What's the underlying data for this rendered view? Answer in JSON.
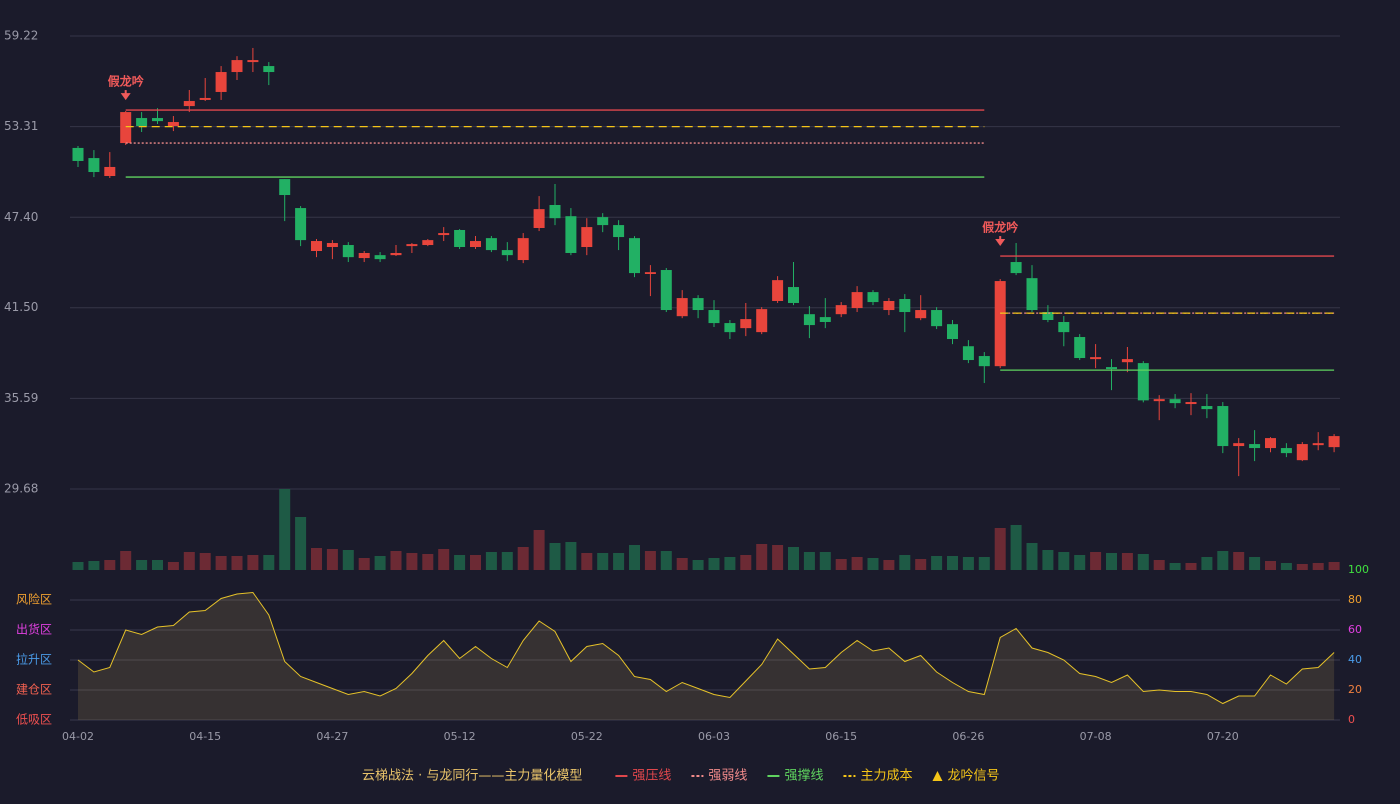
{
  "chart_data": {
    "type": "candlestick",
    "title": "云梯战法 · 与龙同行——主力量化模型",
    "categories": [
      "04-02",
      null,
      null,
      null,
      null,
      null,
      null,
      null,
      "04-15",
      null,
      null,
      null,
      null,
      null,
      null,
      null,
      "04-27",
      null,
      null,
      null,
      null,
      null,
      null,
      null,
      "05-12",
      null,
      null,
      null,
      null,
      null,
      null,
      null,
      "05-22",
      null,
      null,
      null,
      null,
      null,
      null,
      null,
      "06-03",
      null,
      null,
      null,
      null,
      null,
      null,
      null,
      "06-15",
      null,
      null,
      null,
      null,
      null,
      null,
      null,
      "06-26",
      null,
      null,
      null,
      null,
      null,
      null,
      null,
      "07-08",
      null,
      null,
      null,
      null,
      null,
      null,
      null,
      "07-20",
      null,
      null,
      null,
      null,
      null,
      null,
      null
    ],
    "open": [
      51.92,
      51.26,
      50.09,
      52.24,
      53.87,
      53.87,
      53.35,
      54.65,
      55.05,
      55.57,
      56.87,
      57.52,
      57.26,
      49.89,
      48.0,
      45.2,
      45.46,
      45.59,
      44.74,
      44.93,
      44.93,
      45.52,
      45.59,
      46.24,
      46.57,
      45.46,
      46.04,
      45.26,
      44.61,
      46.7,
      48.2,
      47.47,
      45.46,
      47.41,
      46.89,
      46.04,
      43.7,
      43.96,
      40.95,
      42.13,
      41.35,
      40.5,
      40.17,
      39.91,
      41.94,
      42.85,
      41.08,
      40.89,
      41.08,
      41.48,
      42.52,
      41.35,
      42.07,
      40.82,
      41.35,
      40.43,
      38.99,
      38.35,
      37.69,
      44.48,
      43.43,
      41.22,
      40.57,
      39.59,
      38.15,
      37.63,
      37.95,
      37.89,
      35.41,
      35.54,
      35.22,
      35.09,
      35.09,
      32.48,
      32.61,
      32.35,
      32.35,
      31.56,
      32.54,
      32.41
    ],
    "high": [
      52.05,
      51.78,
      51.65,
      54.33,
      54.26,
      54.52,
      54.0,
      55.7,
      56.48,
      57.26,
      57.91,
      58.44,
      57.52,
      49.89,
      48.13,
      45.98,
      45.91,
      45.78,
      45.2,
      45.13,
      45.59,
      45.72,
      45.98,
      46.76,
      46.63,
      46.18,
      46.18,
      45.78,
      46.37,
      48.78,
      49.57,
      48.0,
      47.34,
      47.67,
      47.21,
      46.17,
      44.28,
      44.09,
      42.65,
      42.32,
      42.0,
      40.7,
      41.81,
      41.54,
      43.56,
      44.48,
      41.61,
      42.13,
      41.87,
      42.91,
      42.65,
      42.13,
      42.39,
      42.32,
      41.54,
      40.7,
      39.39,
      38.61,
      43.37,
      45.72,
      44.28,
      41.67,
      40.96,
      39.78,
      39.13,
      38.15,
      38.94,
      38.02,
      35.8,
      35.87,
      35.93,
      35.87,
      35.35,
      33.0,
      33.52,
      33.06,
      32.67,
      32.74,
      33.39,
      33.26
    ],
    "low": [
      50.68,
      50.02,
      49.96,
      52.11,
      52.96,
      53.48,
      53.02,
      54.26,
      54.98,
      55.05,
      56.35,
      56.87,
      56.02,
      47.15,
      45.52,
      44.8,
      44.67,
      44.48,
      44.48,
      44.48,
      44.87,
      45.07,
      45.52,
      45.85,
      45.33,
      45.33,
      45.13,
      44.54,
      44.41,
      46.5,
      46.89,
      44.93,
      44.93,
      46.43,
      45.26,
      43.5,
      42.26,
      41.22,
      40.82,
      40.82,
      40.24,
      39.46,
      39.65,
      39.78,
      41.81,
      41.67,
      39.52,
      40.17,
      40.89,
      41.22,
      41.67,
      41.02,
      39.91,
      40.69,
      40.11,
      39.13,
      37.89,
      36.59,
      37.56,
      43.63,
      41.22,
      40.56,
      38.99,
      38.09,
      37.56,
      36.13,
      37.3,
      35.33,
      34.17,
      34.95,
      34.5,
      34.3,
      32.02,
      30.52,
      31.5,
      32.08,
      31.76,
      31.5,
      32.21,
      32.08
    ],
    "close": [
      51.07,
      50.35,
      50.68,
      54.26,
      53.35,
      53.67,
      53.61,
      54.98,
      55.18,
      56.87,
      57.65,
      57.65,
      56.87,
      48.85,
      45.91,
      45.85,
      45.72,
      44.8,
      45.07,
      44.67,
      45.07,
      45.65,
      45.91,
      46.37,
      45.46,
      45.85,
      45.26,
      44.93,
      46.04,
      47.93,
      47.34,
      45.07,
      46.76,
      46.89,
      46.11,
      43.76,
      43.82,
      41.35,
      42.13,
      41.35,
      40.5,
      39.91,
      40.76,
      41.41,
      43.3,
      41.81,
      40.37,
      40.57,
      41.67,
      42.52,
      41.87,
      41.94,
      41.22,
      41.35,
      40.3,
      39.46,
      38.09,
      37.69,
      43.24,
      43.76,
      41.35,
      40.7,
      39.91,
      38.22,
      38.28,
      37.5,
      38.15,
      35.46,
      35.54,
      35.28,
      35.35,
      34.89,
      32.48,
      32.67,
      32.35,
      33.0,
      32.02,
      32.61,
      32.67,
      33.13
    ],
    "up_color": "#e8453c",
    "down_color": "#22b064",
    "ylim": [
      29.68,
      59.22
    ],
    "yticks": [
      29.68,
      35.59,
      {
        "value": 41.5,
        "label": "41.50"
      },
      {
        "value": 47.4,
        "label": "47.40"
      },
      53.31,
      59.22
    ],
    "grid": true,
    "levels": [
      {
        "name": "强压线",
        "color": "#e0474c",
        "dash": "solid",
        "values": [
          null,
          null,
          null,
          54.39,
          54.39,
          54.39,
          54.39,
          54.39,
          54.39,
          54.39,
          54.39,
          54.39,
          54.39,
          54.39,
          54.39,
          54.39,
          54.39,
          54.39,
          54.39,
          54.39,
          54.39,
          54.39,
          54.39,
          54.39,
          54.39,
          54.39,
          54.39,
          54.39,
          54.39,
          54.39,
          54.39,
          54.39,
          54.39,
          54.39,
          54.39,
          54.39,
          54.39,
          54.39,
          54.39,
          54.39,
          54.39,
          54.39,
          54.39,
          54.39,
          54.39,
          54.39,
          54.39,
          54.39,
          54.39,
          54.39,
          54.39,
          54.39,
          54.39,
          54.39,
          54.39,
          54.39,
          54.39,
          54.39,
          44.87,
          44.87,
          44.87,
          44.87,
          44.87,
          44.87,
          44.87,
          44.87,
          44.87,
          44.87,
          44.87,
          44.87,
          44.87,
          44.87,
          44.87,
          44.87,
          44.87,
          44.87,
          44.87,
          44.87,
          44.87,
          44.87
        ]
      },
      {
        "name": "强弱线",
        "color": "#f08a8a",
        "dash": "dotted",
        "values": [
          null,
          null,
          null,
          52.24,
          52.24,
          52.24,
          52.24,
          52.24,
          52.24,
          52.24,
          52.24,
          52.24,
          52.24,
          52.24,
          52.24,
          52.24,
          52.24,
          52.24,
          52.24,
          52.24,
          52.24,
          52.24,
          52.24,
          52.24,
          52.24,
          52.24,
          52.24,
          52.24,
          52.24,
          52.24,
          52.24,
          52.24,
          52.24,
          52.24,
          52.24,
          52.24,
          52.24,
          52.24,
          52.24,
          52.24,
          52.24,
          52.24,
          52.24,
          52.24,
          52.24,
          52.24,
          52.24,
          52.24,
          52.24,
          52.24,
          52.24,
          52.24,
          52.24,
          52.24,
          52.24,
          52.24,
          52.24,
          52.24,
          41.15,
          41.15,
          41.15,
          41.15,
          41.15,
          41.15,
          41.15,
          41.15,
          41.15,
          41.15,
          41.15,
          41.15,
          41.15,
          41.15,
          41.15,
          41.15,
          41.15,
          41.15,
          41.15,
          41.15,
          41.15,
          41.15
        ]
      },
      {
        "name": "强撑线",
        "color": "#5fd35f",
        "dash": "solid",
        "values": [
          null,
          null,
          null,
          50.02,
          50.02,
          50.02,
          50.02,
          50.02,
          50.02,
          50.02,
          50.02,
          50.02,
          50.02,
          50.02,
          50.02,
          50.02,
          50.02,
          50.02,
          50.02,
          50.02,
          50.02,
          50.02,
          50.02,
          50.02,
          50.02,
          50.02,
          50.02,
          50.02,
          50.02,
          50.02,
          50.02,
          50.02,
          50.02,
          50.02,
          50.02,
          50.02,
          50.02,
          50.02,
          50.02,
          50.02,
          50.02,
          50.02,
          50.02,
          50.02,
          50.02,
          50.02,
          50.02,
          50.02,
          50.02,
          50.02,
          50.02,
          50.02,
          50.02,
          50.02,
          50.02,
          50.02,
          50.02,
          50.02,
          37.43,
          37.43,
          37.43,
          37.43,
          37.43,
          37.43,
          37.43,
          37.43,
          37.43,
          37.43,
          37.43,
          37.43,
          37.43,
          37.43,
          37.43,
          37.43,
          37.43,
          37.43,
          37.43,
          37.43,
          37.43,
          37.43
        ]
      },
      {
        "name": "主力成本",
        "color": "#f5c518",
        "dash": "dashed",
        "values": [
          null,
          null,
          null,
          53.31,
          53.31,
          53.31,
          53.31,
          53.31,
          53.31,
          53.31,
          53.31,
          53.31,
          53.31,
          53.31,
          53.31,
          53.31,
          53.31,
          53.31,
          53.31,
          53.31,
          53.31,
          53.31,
          53.31,
          53.31,
          53.31,
          53.31,
          53.31,
          53.31,
          53.31,
          53.31,
          53.31,
          53.31,
          53.31,
          53.31,
          53.31,
          53.31,
          53.31,
          53.31,
          53.31,
          53.31,
          53.31,
          53.31,
          53.31,
          53.31,
          53.31,
          53.31,
          53.31,
          53.31,
          53.31,
          53.31,
          53.31,
          53.31,
          53.31,
          53.31,
          53.31,
          53.31,
          53.31,
          53.31,
          41.15,
          41.15,
          41.15,
          41.15,
          41.15,
          41.15,
          41.15,
          41.15,
          41.15,
          41.15,
          41.15,
          41.15,
          41.15,
          41.15,
          41.15,
          41.15,
          41.15,
          41.15,
          41.15,
          41.15,
          41.15,
          41.15
        ]
      }
    ],
    "signal_name": "龙吟信号",
    "signal_color": "#f5c518",
    "signal_mark_color": "#f05a5a",
    "signals": [
      null,
      null,
      null,
      "假龙吟",
      null,
      null,
      null,
      null,
      null,
      null,
      null,
      null,
      null,
      null,
      null,
      null,
      null,
      null,
      null,
      null,
      null,
      null,
      null,
      null,
      null,
      null,
      null,
      null,
      null,
      null,
      null,
      null,
      null,
      null,
      null,
      null,
      null,
      null,
      null,
      null,
      null,
      null,
      null,
      null,
      null,
      null,
      null,
      null,
      null,
      null,
      null,
      null,
      null,
      null,
      null,
      null,
      null,
      null,
      "假龙吟",
      null,
      null,
      null,
      null,
      null,
      null,
      null,
      null,
      null,
      null,
      null,
      null,
      null,
      null,
      null,
      null,
      null,
      null,
      null,
      null,
      null
    ],
    "volume": {
      "up_color": "#6c2a34",
      "down_color": "#1e5a45",
      "ylim": [
        0,
        81
      ],
      "values": [
        8,
        9,
        10,
        19,
        10,
        10,
        8,
        18,
        17,
        14,
        14,
        15,
        15,
        82,
        53,
        22,
        21,
        20,
        12,
        14,
        19,
        17,
        16,
        21,
        15,
        15,
        18,
        18,
        23,
        40,
        27,
        28,
        17,
        17,
        17,
        25,
        19,
        19,
        12,
        10,
        12,
        13,
        15,
        26,
        25,
        23,
        18,
        18,
        11,
        13,
        12,
        10,
        15,
        11,
        14,
        14,
        13,
        13,
        42,
        45,
        27,
        20,
        18,
        15,
        18,
        17,
        17,
        16,
        10,
        7,
        7,
        13,
        19,
        18,
        13,
        9,
        7,
        6,
        7,
        8
      ]
    },
    "oscillator": {
      "color": "#e6c229",
      "ylim": [
        0,
        100
      ],
      "yticks": [
        0,
        20,
        40,
        60,
        80,
        100
      ],
      "tick_colors": [
        "#f05050",
        "#f08040",
        "#4a9be8",
        "#e040e0",
        "#f0a030",
        "#40e040"
      ],
      "zones": [
        {
          "value": 80,
          "label": "风险区",
          "color": "#f0a030"
        },
        {
          "value": 60,
          "label": "出货区",
          "color": "#e040e0"
        },
        {
          "value": 40,
          "label": "拉升区",
          "color": "#4a9be8"
        },
        {
          "value": 20,
          "label": "建仓区",
          "color": "#f06050"
        },
        {
          "value": 0,
          "label": "低吸区",
          "color": "#f05050"
        }
      ],
      "values": [
        40,
        32,
        35,
        60,
        57,
        62,
        63,
        72,
        73,
        81,
        84,
        85,
        70,
        39,
        29,
        25,
        21,
        17,
        19,
        16,
        21,
        31,
        43,
        53,
        41,
        49,
        41,
        35,
        53,
        66,
        59,
        39,
        49,
        51,
        43,
        29,
        27,
        19,
        25,
        21,
        17,
        15,
        26,
        37,
        54,
        44,
        34,
        35,
        45,
        53,
        46,
        48,
        39,
        43,
        32,
        25,
        19,
        17,
        55,
        61,
        48,
        45,
        40,
        31,
        29,
        25,
        30,
        19,
        20,
        19,
        19,
        17,
        11,
        16,
        16,
        30,
        24,
        34,
        35,
        45
      ]
    }
  }
}
